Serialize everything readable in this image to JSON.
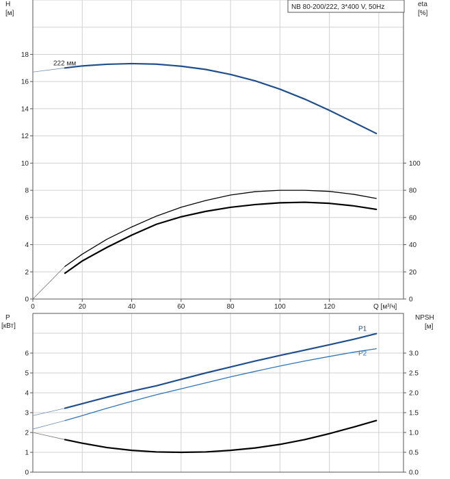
{
  "legend": "NB 80-200/222, 3*400 V, 50Hz",
  "chart_data": [
    {
      "type": "line",
      "title": "",
      "xlabel": "Q [м³/ч]",
      "ylabel_left_top": "H",
      "ylabel_left_unit": "[м]",
      "ylabel_right_top": "eta",
      "ylabel_right_unit": "[%]",
      "xlim": [
        0,
        150
      ],
      "ylim_left": [
        0,
        22
      ],
      "ylim_right": [
        0,
        220
      ],
      "x_ticks": [
        0,
        20,
        40,
        60,
        80,
        100,
        120
      ],
      "y_ticks_left": [
        0,
        2,
        4,
        6,
        8,
        10,
        12,
        14,
        16,
        18
      ],
      "y_ticks_right": [
        0,
        20,
        40,
        60,
        80,
        100
      ],
      "grid": true,
      "series": [
        {
          "name": "222 мм",
          "axis": "left",
          "color": "#1f4e8c",
          "x": [
            0,
            13,
            20,
            30,
            40,
            50,
            60,
            70,
            80,
            90,
            100,
            110,
            120,
            130,
            139
          ],
          "y": [
            16.7,
            17.0,
            17.15,
            17.27,
            17.32,
            17.28,
            17.13,
            16.89,
            16.52,
            16.05,
            15.44,
            14.71,
            13.88,
            12.99,
            12.18
          ]
        },
        {
          "axis": "right",
          "color": "#000000",
          "x": [
            0,
            13,
            20,
            30,
            40,
            50,
            60,
            70,
            80,
            90,
            100,
            110,
            120,
            130,
            139
          ],
          "y": [
            0,
            24,
            33,
            44,
            53,
            61,
            67.5,
            72.5,
            76.5,
            79,
            80,
            80,
            79.2,
            77,
            74
          ]
        },
        {
          "axis": "right",
          "color": "#000000",
          "x": [
            13,
            20,
            30,
            40,
            50,
            60,
            70,
            80,
            90,
            100,
            110,
            120,
            130,
            139
          ],
          "y": [
            19,
            28,
            38,
            47,
            55,
            60.5,
            64.5,
            67.5,
            69.5,
            70.8,
            71.2,
            70.4,
            68.5,
            66
          ]
        }
      ]
    },
    {
      "type": "line",
      "title": "",
      "ylabel_left_top": "P",
      "ylabel_left_unit": "[кВт]",
      "ylabel_right_top": "NPSH",
      "ylabel_right_unit": "[м]",
      "xlim": [
        0,
        150
      ],
      "ylim_left": [
        0,
        8
      ],
      "ylim_right": [
        0,
        4
      ],
      "y_ticks_left": [
        0,
        1,
        2,
        3,
        4,
        5,
        6
      ],
      "y_ticks_right": [
        "0.0",
        "0.5",
        "1.0",
        "1.5",
        "2.0",
        "2.5",
        "3.0"
      ],
      "grid": true,
      "series": [
        {
          "name": "P1",
          "axis": "left",
          "color": "#1f4e8c",
          "x": [
            0,
            13,
            20,
            30,
            40,
            50,
            60,
            70,
            80,
            90,
            100,
            110,
            120,
            130,
            139
          ],
          "y": [
            2.85,
            3.22,
            3.45,
            3.78,
            4.08,
            4.35,
            4.68,
            5.0,
            5.3,
            5.6,
            5.88,
            6.15,
            6.42,
            6.7,
            6.98
          ]
        },
        {
          "name": "P2",
          "axis": "left",
          "color": "#2e75b6",
          "x": [
            0,
            13,
            20,
            30,
            40,
            50,
            60,
            70,
            80,
            90,
            100,
            110,
            120,
            130,
            139
          ],
          "y": [
            2.17,
            2.6,
            2.85,
            3.22,
            3.57,
            3.9,
            4.2,
            4.5,
            4.8,
            5.08,
            5.35,
            5.6,
            5.83,
            6.05,
            6.22
          ]
        },
        {
          "axis": "right",
          "color": "#000000",
          "x": [
            0,
            13,
            20,
            30,
            40,
            50,
            60,
            70,
            80,
            90,
            100,
            110,
            120,
            130,
            139
          ],
          "y": [
            1.0,
            0.82,
            0.73,
            0.62,
            0.55,
            0.51,
            0.5,
            0.51,
            0.55,
            0.61,
            0.7,
            0.82,
            0.97,
            1.14,
            1.3
          ]
        }
      ]
    }
  ]
}
